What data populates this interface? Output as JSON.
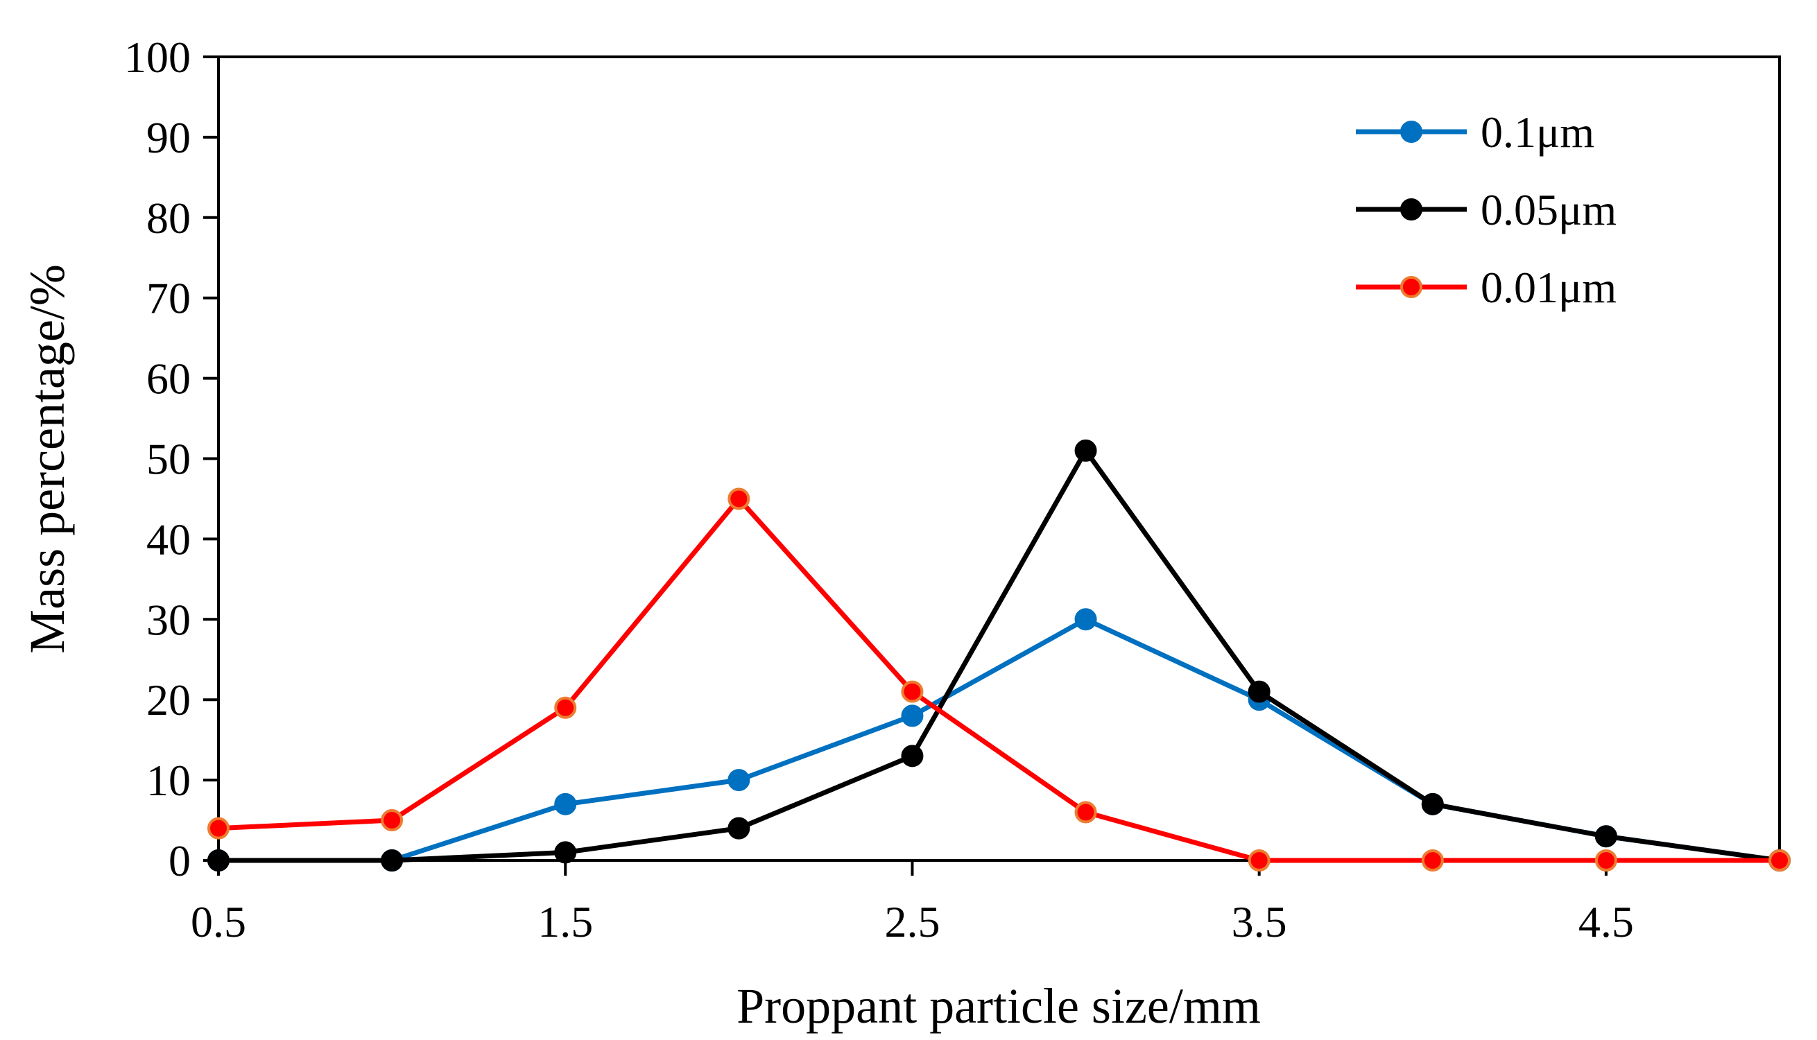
{
  "chart_data": {
    "type": "line",
    "title": "",
    "xlabel": "Proppant particle size/mm",
    "ylabel": "Mass percentage/%",
    "xlim": [
      0.5,
      5.0
    ],
    "ylim": [
      0,
      100
    ],
    "x_ticks": [
      0.5,
      1.5,
      2.5,
      3.5,
      4.5
    ],
    "x_tick_labels": [
      "0.5",
      "1.5",
      "2.5",
      "3.5",
      "4.5"
    ],
    "y_ticks": [
      0,
      10,
      20,
      30,
      40,
      50,
      60,
      70,
      80,
      90,
      100
    ],
    "y_tick_labels": [
      "0",
      "10",
      "20",
      "30",
      "40",
      "50",
      "60",
      "70",
      "80",
      "90",
      "100"
    ],
    "x": [
      0.5,
      1.0,
      1.5,
      2.0,
      2.5,
      3.0,
      3.5,
      4.0,
      4.5,
      5.0
    ],
    "grid": false,
    "legend_position": "top-right",
    "series": [
      {
        "name": "0.1μm",
        "color": "#0070c0",
        "marker_fill": "#0070c0",
        "marker_edge": "#0070c0",
        "values": [
          0,
          0,
          7,
          10,
          18,
          30,
          20,
          7,
          3,
          0
        ]
      },
      {
        "name": "0.05μm",
        "color": "#000000",
        "marker_fill": "#000000",
        "marker_edge": "#000000",
        "values": [
          0,
          0,
          1,
          4,
          13,
          51,
          21,
          7,
          3,
          0
        ]
      },
      {
        "name": "0.01μm",
        "color": "#ff0000",
        "marker_fill": "#ff0000",
        "marker_edge": "#ed7d31",
        "values": [
          4,
          5,
          19,
          45,
          21,
          6,
          0,
          0,
          0,
          0
        ]
      }
    ]
  }
}
